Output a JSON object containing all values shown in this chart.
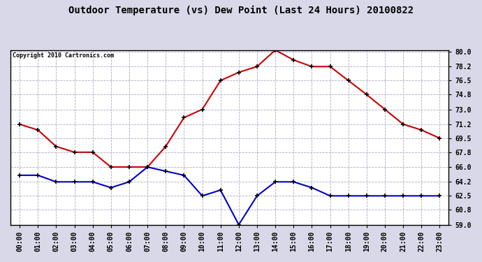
{
  "title": "Outdoor Temperature (vs) Dew Point (Last 24 Hours) 20100822",
  "copyright": "Copyright 2010 Cartronics.com",
  "hours": [
    "00:00",
    "01:00",
    "02:00",
    "03:00",
    "04:00",
    "05:00",
    "06:00",
    "07:00",
    "08:00",
    "09:00",
    "10:00",
    "11:00",
    "12:00",
    "13:00",
    "14:00",
    "15:00",
    "16:00",
    "17:00",
    "18:00",
    "19:00",
    "20:00",
    "21:00",
    "22:00",
    "23:00"
  ],
  "temp": [
    71.2,
    70.5,
    68.5,
    67.8,
    67.8,
    66.0,
    66.0,
    66.0,
    68.5,
    72.0,
    73.0,
    76.5,
    77.5,
    78.2,
    80.2,
    79.0,
    78.2,
    78.2,
    76.5,
    74.8,
    73.0,
    71.2,
    70.5,
    69.5
  ],
  "dewpoint": [
    65.0,
    65.0,
    64.2,
    64.2,
    64.2,
    63.5,
    64.2,
    66.0,
    65.5,
    65.0,
    62.5,
    63.2,
    59.0,
    62.5,
    64.2,
    64.2,
    63.5,
    62.5,
    62.5,
    62.5,
    62.5,
    62.5,
    62.5,
    62.5
  ],
  "temp_color": "#cc0000",
  "dew_color": "#0000cc",
  "ylim_min": 59.0,
  "ylim_max": 80.2,
  "yticks": [
    59.0,
    60.8,
    62.5,
    64.2,
    66.0,
    67.8,
    69.5,
    71.2,
    73.0,
    74.8,
    76.5,
    78.2,
    80.0
  ],
  "bg_color": "#d8d8e8",
  "plot_bg": "#ffffff",
  "grid_color": "#aaaacc",
  "marker": "+",
  "marker_size": 5,
  "marker_edge_width": 1.2,
  "line_width": 1.5,
  "title_fontsize": 10,
  "copyright_fontsize": 6,
  "tick_fontsize": 7
}
